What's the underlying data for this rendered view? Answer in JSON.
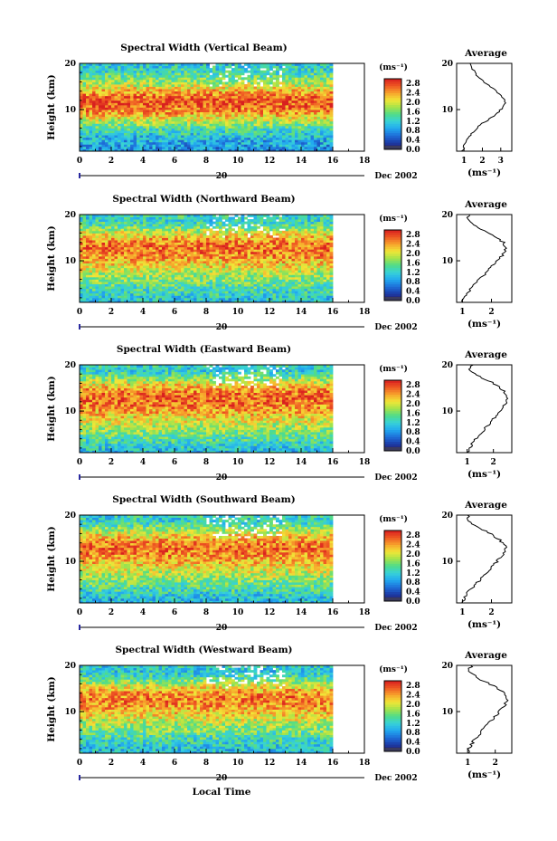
{
  "figure": {
    "xlabel": "Local Time",
    "day_label": "20",
    "month_label": "Dec 2002",
    "average_title": "Average",
    "unit_label": "(ms⁻¹)",
    "colorbar_ticks": [
      "2.8",
      "2.4",
      "2.0",
      "1.6",
      "1.2",
      "0.8",
      "0.4",
      "0.0"
    ],
    "colorbar_range": [
      0.0,
      3.0
    ],
    "colormap": [
      "#2a1a5e",
      "#1c3ba8",
      "#1e6fd9",
      "#22a9ef",
      "#37d2d8",
      "#4fdc8a",
      "#a4e34a",
      "#f1e637",
      "#f7a52c",
      "#ef5a23",
      "#d81f1f"
    ]
  },
  "chart_data": [
    {
      "type": "heatmap",
      "title": "Spectral Width (Vertical Beam)",
      "xlabel": "Local Time",
      "ylabel": "Height (km)",
      "xlim": [
        0,
        18
      ],
      "ylim": [
        1,
        20
      ],
      "x_ticks": [
        "0",
        "2",
        "4",
        "6",
        "8",
        "10",
        "12",
        "14",
        "16",
        "18"
      ],
      "y_ticks": [
        "20",
        "10"
      ],
      "data_extent_hours": [
        0,
        16
      ],
      "colorbar_label": "(ms⁻¹)",
      "profile": {
        "title": "Average",
        "xlabel": "(ms⁻¹)",
        "x_ticks": [
          "1",
          "2",
          "3"
        ],
        "xlim": [
          0.6,
          3.6
        ],
        "heights": [
          1,
          2,
          3,
          4,
          5,
          6,
          7,
          8,
          9,
          10,
          11,
          12,
          13,
          14,
          15,
          16,
          17,
          18,
          19,
          20
        ],
        "values": [
          0.9,
          1.0,
          1.1,
          1.25,
          1.45,
          1.7,
          2.0,
          2.4,
          2.75,
          3.0,
          3.2,
          3.25,
          3.05,
          2.75,
          2.4,
          2.05,
          1.8,
          1.6,
          1.45,
          1.3
        ]
      }
    },
    {
      "type": "heatmap",
      "title": "Spectral Width (Northward Beam)",
      "xlabel": "Local Time",
      "ylabel": "Height (km)",
      "xlim": [
        0,
        18
      ],
      "ylim": [
        1,
        20
      ],
      "x_ticks": [
        "0",
        "2",
        "4",
        "6",
        "8",
        "10",
        "12",
        "14",
        "16",
        "18"
      ],
      "y_ticks": [
        "20",
        "10"
      ],
      "data_extent_hours": [
        0,
        16
      ],
      "colorbar_label": "(ms⁻¹)",
      "profile": {
        "title": "Average",
        "xlabel": "(ms⁻¹)",
        "x_ticks": [
          "1",
          "2"
        ],
        "xlim": [
          0.8,
          2.7
        ],
        "heights": [
          1,
          2,
          3,
          4,
          5,
          6,
          7,
          8,
          9,
          10,
          11,
          12,
          13,
          14,
          15,
          16,
          17,
          18,
          19,
          20
        ],
        "values": [
          1.0,
          1.1,
          1.2,
          1.3,
          1.45,
          1.6,
          1.75,
          1.9,
          2.05,
          2.2,
          2.35,
          2.45,
          2.5,
          2.4,
          2.2,
          1.95,
          1.6,
          1.3,
          1.15,
          1.25
        ]
      }
    },
    {
      "type": "heatmap",
      "title": "Spectral Width (Eastward Beam)",
      "xlabel": "Local Time",
      "ylabel": "Height (km)",
      "xlim": [
        0,
        18
      ],
      "ylim": [
        1,
        20
      ],
      "x_ticks": [
        "0",
        "2",
        "4",
        "6",
        "8",
        "10",
        "12",
        "14",
        "16",
        "18"
      ],
      "y_ticks": [
        "20",
        "10"
      ],
      "data_extent_hours": [
        0,
        16
      ],
      "colorbar_label": "(ms⁻¹)",
      "profile": {
        "title": "Average",
        "xlabel": "(ms⁻¹)",
        "x_ticks": [
          "1",
          "2"
        ],
        "xlim": [
          0.6,
          2.7
        ],
        "heights": [
          1,
          2,
          3,
          4,
          5,
          6,
          7,
          8,
          9,
          10,
          11,
          12,
          13,
          14,
          15,
          16,
          17,
          18,
          19,
          20
        ],
        "values": [
          1.0,
          1.1,
          1.2,
          1.35,
          1.5,
          1.65,
          1.8,
          1.95,
          2.1,
          2.25,
          2.4,
          2.5,
          2.55,
          2.45,
          2.25,
          2.0,
          1.65,
          1.3,
          1.1,
          1.2
        ]
      }
    },
    {
      "type": "heatmap",
      "title": "Spectral Width (Southward Beam)",
      "xlabel": "Local Time",
      "ylabel": "Height (km)",
      "xlim": [
        0,
        18
      ],
      "ylim": [
        1,
        20
      ],
      "x_ticks": [
        "0",
        "2",
        "4",
        "6",
        "8",
        "10",
        "12",
        "14",
        "16",
        "18"
      ],
      "y_ticks": [
        "20",
        "10"
      ],
      "data_extent_hours": [
        0,
        16
      ],
      "colorbar_label": "(ms⁻¹)",
      "profile": {
        "title": "Average",
        "xlabel": "(ms⁻¹)",
        "x_ticks": [
          "1",
          "2"
        ],
        "xlim": [
          0.8,
          2.7
        ],
        "heights": [
          1,
          2,
          3,
          4,
          5,
          6,
          7,
          8,
          9,
          10,
          11,
          12,
          13,
          14,
          15,
          16,
          17,
          18,
          19,
          20
        ],
        "values": [
          1.0,
          1.05,
          1.15,
          1.3,
          1.45,
          1.6,
          1.75,
          1.9,
          2.05,
          2.2,
          2.35,
          2.45,
          2.5,
          2.4,
          2.2,
          1.95,
          1.65,
          1.35,
          1.15,
          1.2
        ]
      }
    },
    {
      "type": "heatmap",
      "title": "Spectral Width (Westward Beam)",
      "xlabel": "Local Time",
      "ylabel": "Height (km)",
      "xlim": [
        0,
        18
      ],
      "ylim": [
        1,
        20
      ],
      "x_ticks": [
        "0",
        "2",
        "4",
        "6",
        "8",
        "10",
        "12",
        "14",
        "16",
        "18"
      ],
      "y_ticks": [
        "20",
        "10"
      ],
      "data_extent_hours": [
        0,
        16
      ],
      "colorbar_label": "(ms⁻¹)",
      "profile": {
        "title": "Average",
        "xlabel": "(ms⁻¹)",
        "x_ticks": [
          "1",
          "2"
        ],
        "xlim": [
          0.6,
          2.6
        ],
        "heights": [
          1,
          2,
          3,
          4,
          5,
          6,
          7,
          8,
          9,
          10,
          11,
          12,
          13,
          14,
          15,
          16,
          17,
          18,
          19,
          20
        ],
        "values": [
          1.0,
          1.05,
          1.15,
          1.25,
          1.4,
          1.55,
          1.7,
          1.85,
          2.0,
          2.15,
          2.3,
          2.4,
          2.45,
          2.35,
          2.1,
          1.8,
          1.45,
          1.2,
          1.05,
          1.15
        ]
      }
    }
  ]
}
